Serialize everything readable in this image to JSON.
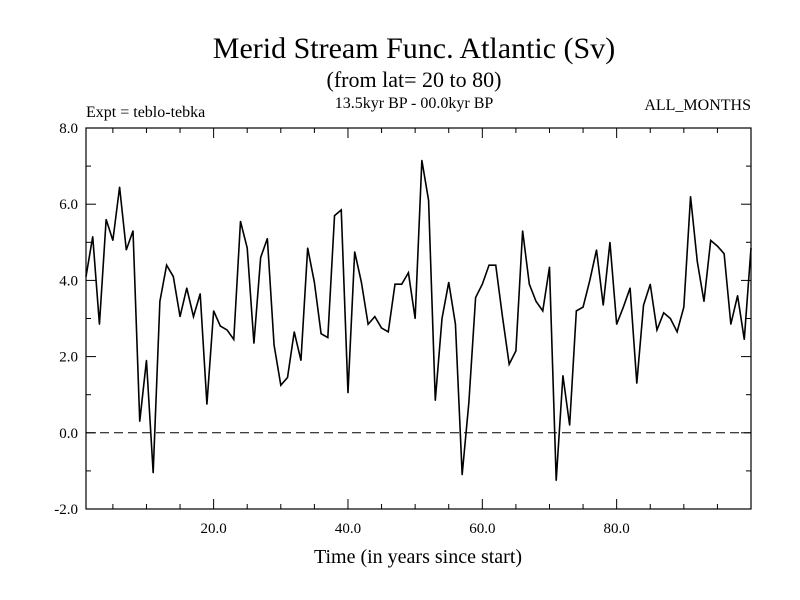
{
  "chart_data": {
    "type": "line",
    "title": "Merid Stream Func. Atlantic (Sv)",
    "subtitle": "(from lat= 20 to 80)",
    "header_left": "Expt = teblo-tebka",
    "header_center": "13.5kyr BP - 00.0kyr BP",
    "header_right": "ALL_MONTHS",
    "xlabel": "Time (in years since start)",
    "ylabel": "",
    "xlim": [
      1,
      100
    ],
    "ylim": [
      -2.0,
      8.0
    ],
    "xticks": [
      20,
      40,
      60,
      80
    ],
    "xtick_labels": [
      "20.0",
      "40.0",
      "60.0",
      "80.0"
    ],
    "yticks": [
      -2,
      0,
      2,
      4,
      6,
      8
    ],
    "ytick_labels": [
      "-2.0",
      "0.0",
      "2.0",
      "4.0",
      "6.0",
      "8.0"
    ],
    "reference_line": 0.0,
    "series": [
      {
        "name": "Merid Stream Func",
        "x": [
          1,
          2,
          3,
          4,
          5,
          6,
          7,
          8,
          9,
          10,
          11,
          12,
          13,
          14,
          15,
          16,
          17,
          18,
          19,
          20,
          21,
          22,
          23,
          24,
          25,
          26,
          27,
          28,
          29,
          30,
          31,
          32,
          33,
          34,
          35,
          36,
          37,
          38,
          39,
          40,
          41,
          42,
          43,
          44,
          45,
          46,
          47,
          48,
          49,
          50,
          51,
          52,
          53,
          54,
          55,
          56,
          57,
          58,
          59,
          60,
          61,
          62,
          63,
          64,
          65,
          66,
          67,
          68,
          69,
          70,
          71,
          72,
          73,
          74,
          75,
          76,
          77,
          78,
          79,
          80,
          81,
          82,
          83,
          84,
          85,
          86,
          87,
          88,
          89,
          90,
          91,
          92,
          93,
          94,
          95,
          96,
          97,
          98,
          99,
          100
        ],
        "values": [
          4.1,
          5.15,
          2.85,
          5.6,
          5.05,
          6.45,
          4.8,
          5.3,
          0.3,
          1.9,
          -1.05,
          3.45,
          4.4,
          4.1,
          3.05,
          3.8,
          3.05,
          3.65,
          0.75,
          3.2,
          2.8,
          2.7,
          2.45,
          5.55,
          4.85,
          2.35,
          4.6,
          5.1,
          2.3,
          1.25,
          1.45,
          2.65,
          1.9,
          4.85,
          3.95,
          2.6,
          2.5,
          5.7,
          5.85,
          1.05,
          4.75,
          3.95,
          2.85,
          3.05,
          2.75,
          2.65,
          3.9,
          3.9,
          4.2,
          3.0,
          7.15,
          6.1,
          0.85,
          3.0,
          3.95,
          2.85,
          -1.1,
          0.8,
          3.55,
          3.9,
          4.4,
          4.4,
          3.05,
          1.8,
          2.15,
          5.3,
          3.9,
          3.45,
          3.2,
          4.35,
          -1.25,
          1.5,
          0.2,
          3.2,
          3.3,
          4.0,
          4.8,
          3.35,
          5.0,
          2.85,
          3.3,
          3.8,
          1.3,
          3.35,
          3.9,
          2.7,
          3.15,
          3.0,
          2.65,
          3.3,
          6.2,
          4.5,
          3.45,
          5.05,
          4.9,
          4.7,
          2.85,
          3.6,
          2.45,
          4.85
        ]
      }
    ]
  }
}
